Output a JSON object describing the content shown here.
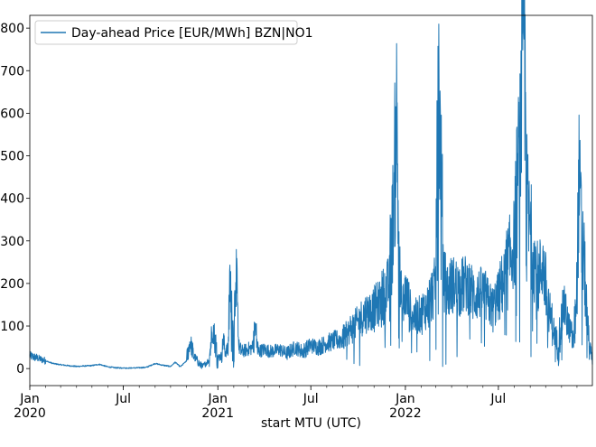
{
  "chart_data": {
    "type": "line",
    "title": "",
    "xlabel": "start MTU (UTC)",
    "ylabel": "",
    "xlim": [
      "2020-01-01",
      "2022-12-31"
    ],
    "ylim": [
      -40,
      830
    ],
    "grid": false,
    "legend_position": "top-left",
    "line_color": "#1f77b4",
    "yticks": [
      0,
      100,
      200,
      300,
      400,
      500,
      600,
      700,
      800
    ],
    "xticks": [
      {
        "date": "2020-01-01",
        "label": "Jan",
        "sublabel": "2020"
      },
      {
        "date": "2020-07-01",
        "label": "Jul",
        "sublabel": ""
      },
      {
        "date": "2021-01-01",
        "label": "Jan",
        "sublabel": "2021"
      },
      {
        "date": "2021-07-01",
        "label": "Jul",
        "sublabel": ""
      },
      {
        "date": "2022-01-01",
        "label": "Jan",
        "sublabel": "2022"
      },
      {
        "date": "2022-07-01",
        "label": "Jul",
        "sublabel": ""
      }
    ],
    "series": [
      {
        "name": "Day-ahead Price [EUR/MWh] BZN|NO1",
        "x": [
          "2020-01-01",
          "2020-01-15",
          "2020-02-01",
          "2020-02-15",
          "2020-03-01",
          "2020-03-15",
          "2020-04-01",
          "2020-04-15",
          "2020-05-01",
          "2020-05-15",
          "2020-06-01",
          "2020-06-15",
          "2020-07-01",
          "2020-07-15",
          "2020-08-01",
          "2020-08-15",
          "2020-09-01",
          "2020-09-15",
          "2020-10-01",
          "2020-10-10",
          "2020-10-20",
          "2020-11-01",
          "2020-11-08",
          "2020-11-15",
          "2020-12-01",
          "2020-12-15",
          "2020-12-22",
          "2021-01-01",
          "2021-01-08",
          "2021-01-12",
          "2021-01-15",
          "2021-01-20",
          "2021-01-25",
          "2021-02-01",
          "2021-02-05",
          "2021-02-10",
          "2021-02-15",
          "2021-03-01",
          "2021-03-10",
          "2021-03-15",
          "2021-03-20",
          "2021-04-01",
          "2021-04-15",
          "2021-05-01",
          "2021-05-15",
          "2021-06-01",
          "2021-06-15",
          "2021-07-01",
          "2021-07-15",
          "2021-08-01",
          "2021-08-15",
          "2021-09-01",
          "2021-09-15",
          "2021-10-01",
          "2021-10-15",
          "2021-11-01",
          "2021-11-15",
          "2021-12-01",
          "2021-12-10",
          "2021-12-15",
          "2021-12-20",
          "2021-12-25",
          "2022-01-01",
          "2022-01-10",
          "2022-01-20",
          "2022-02-01",
          "2022-02-15",
          "2022-03-01",
          "2022-03-07",
          "2022-03-15",
          "2022-03-25",
          "2022-04-01",
          "2022-04-15",
          "2022-05-01",
          "2022-05-15",
          "2022-06-01",
          "2022-06-10",
          "2022-06-20",
          "2022-07-01",
          "2022-07-15",
          "2022-08-01",
          "2022-08-10",
          "2022-08-15",
          "2022-08-20",
          "2022-08-25",
          "2022-08-29",
          "2022-09-05",
          "2022-09-15",
          "2022-09-25",
          "2022-10-05",
          "2022-10-15",
          "2022-10-25",
          "2022-11-05",
          "2022-11-15",
          "2022-11-25",
          "2022-12-01",
          "2022-12-05",
          "2022-12-10",
          "2022-12-15",
          "2022-12-20",
          "2022-12-25",
          "2022-12-31"
        ],
        "y": [
          30,
          25,
          18,
          12,
          9,
          7,
          5,
          6,
          7,
          10,
          4,
          2,
          1,
          1,
          2,
          3,
          12,
          8,
          5,
          15,
          4,
          18,
          65,
          30,
          3,
          20,
          100,
          25,
          30,
          70,
          40,
          45,
          200,
          60,
          250,
          55,
          40,
          45,
          50,
          100,
          40,
          45,
          40,
          45,
          35,
          50,
          40,
          55,
          50,
          60,
          65,
          70,
          90,
          110,
          130,
          140,
          160,
          200,
          410,
          600,
          250,
          120,
          180,
          140,
          120,
          130,
          150,
          200,
          670,
          220,
          180,
          200,
          190,
          200,
          170,
          180,
          160,
          140,
          170,
          220,
          300,
          500,
          600,
          800,
          420,
          350,
          300,
          200,
          250,
          150,
          100,
          50,
          150,
          100,
          60,
          200,
          450,
          300,
          250,
          120,
          60,
          10
        ]
      }
    ]
  }
}
